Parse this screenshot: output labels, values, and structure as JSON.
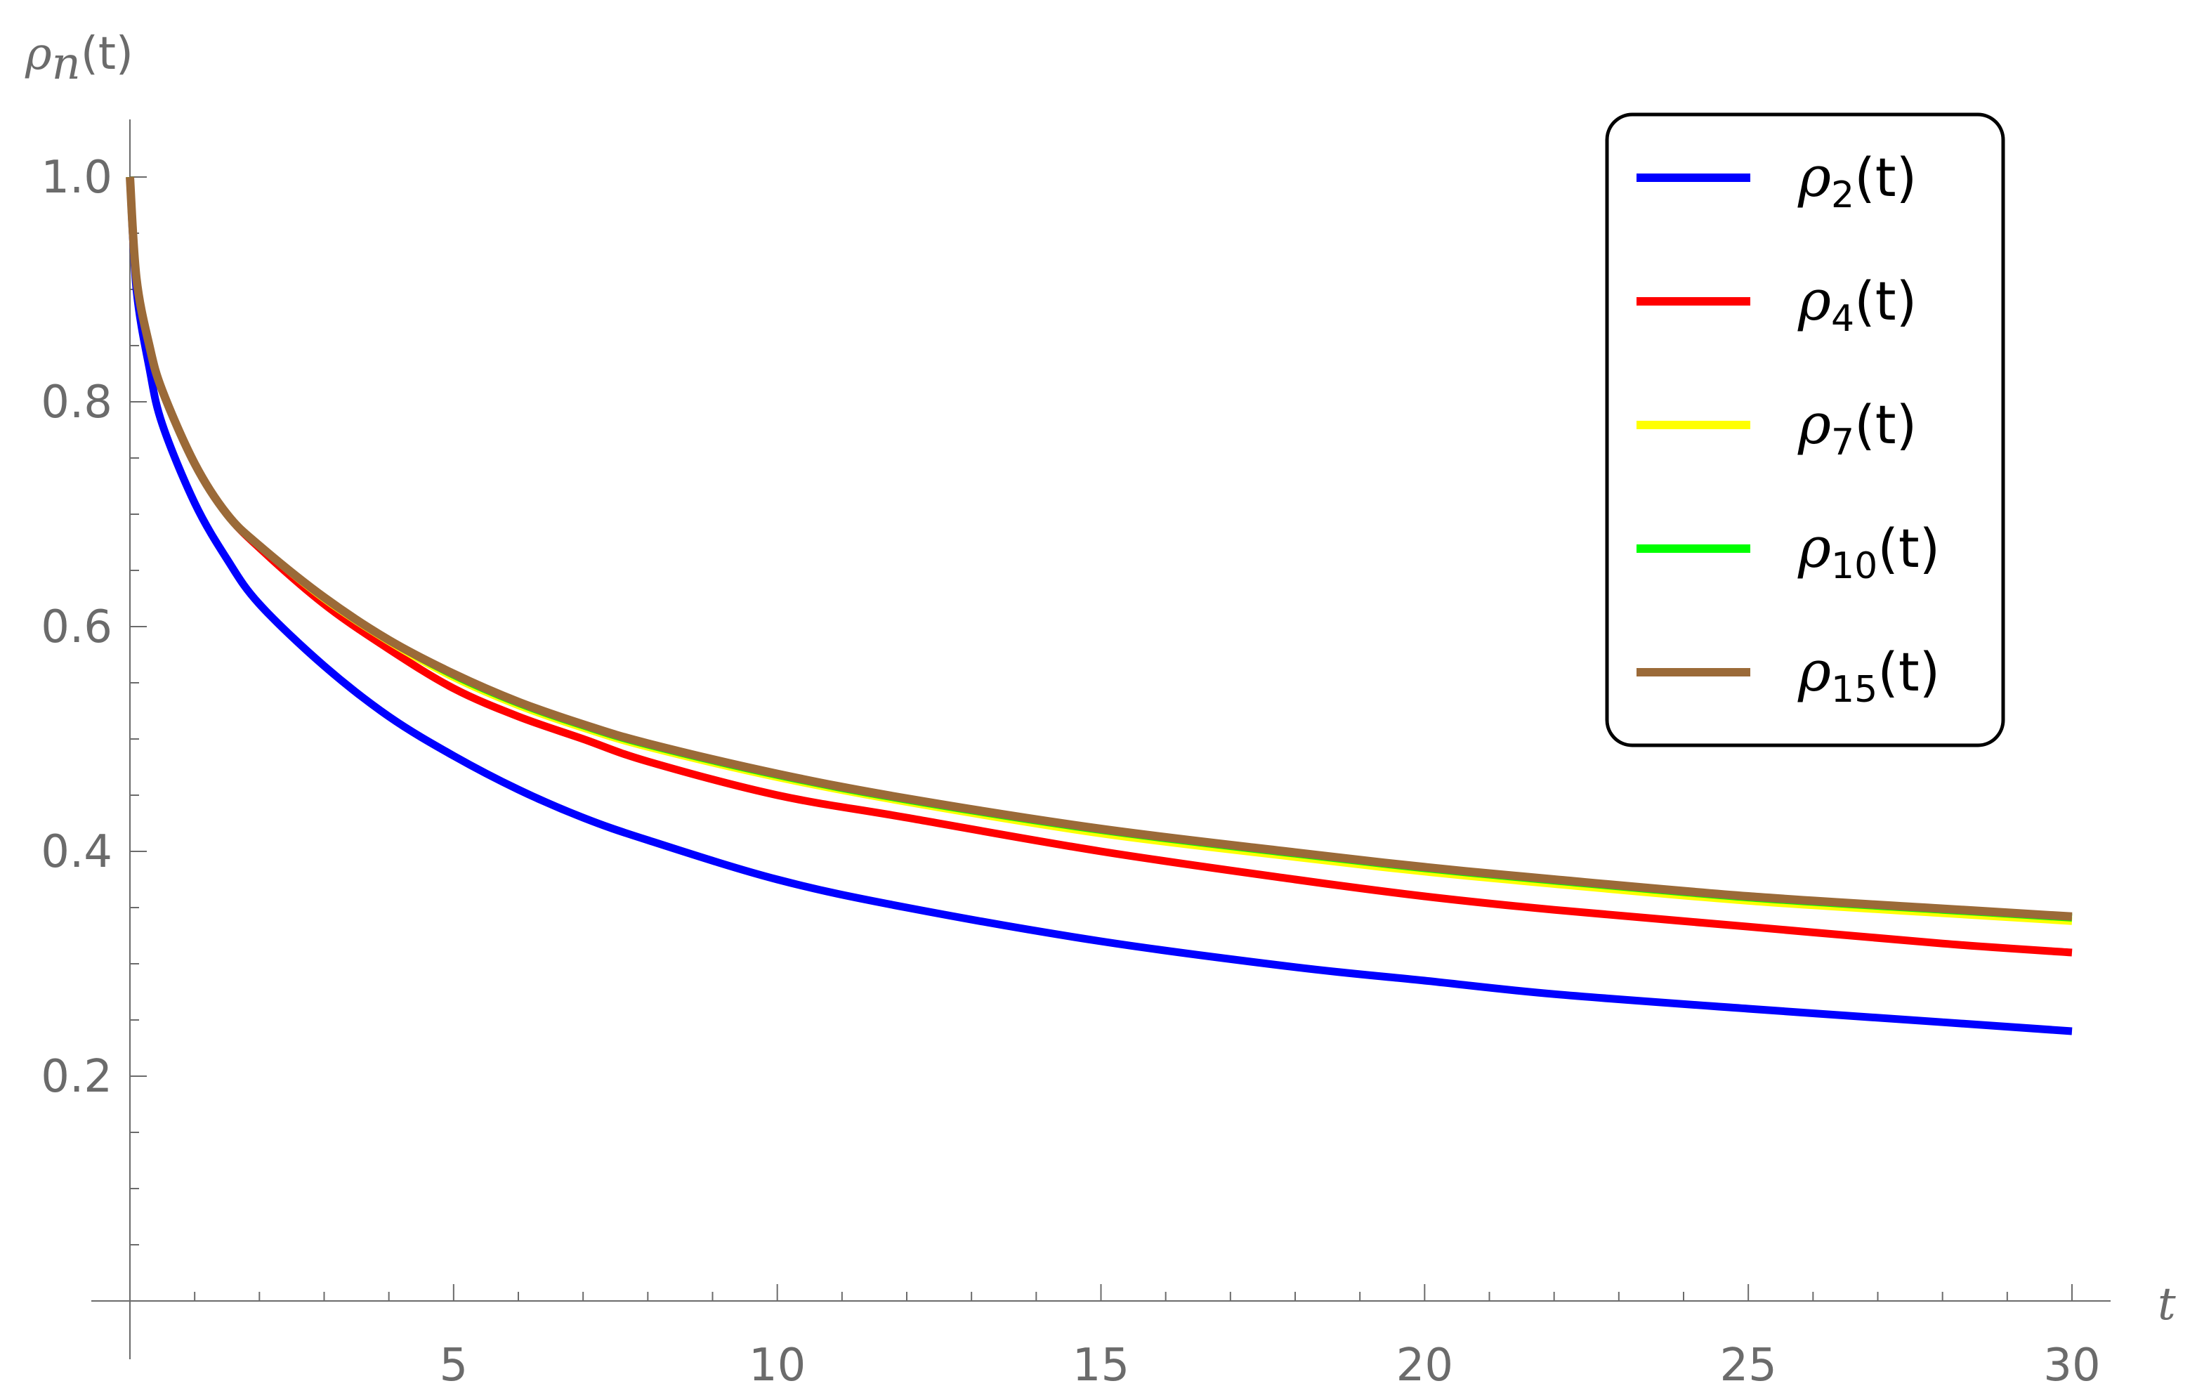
{
  "chart_data": {
    "type": "line",
    "title": "",
    "ylabel": {
      "main": "ρ",
      "sub": "n",
      "tail": "(t)"
    },
    "xlabel": "t",
    "xlim": [
      0,
      30
    ],
    "ylim": [
      0,
      1.05
    ],
    "xticks": [
      5,
      10,
      15,
      20,
      25,
      30
    ],
    "xtick_labels": [
      "5",
      "10",
      "15",
      "20",
      "25",
      "30"
    ],
    "yticks": [
      0.2,
      0.4,
      0.6,
      0.8,
      1.0
    ],
    "ytick_labels": [
      "0.2",
      "0.4",
      "0.6",
      "0.8",
      "1.0"
    ],
    "grid": false,
    "legend_position": "top-right",
    "x": [
      0,
      0.1,
      0.3,
      0.5,
      1,
      1.5,
      2,
      3,
      4,
      5,
      6,
      7,
      8,
      10,
      12,
      15,
      18,
      20,
      22,
      25,
      28,
      30
    ],
    "series": [
      {
        "name": "ρ2(t)",
        "label_main": "ρ",
        "label_sub": "2",
        "label_tail": "(t)",
        "color": "#0000ff",
        "values": [
          1.0,
          0.9,
          0.83,
          0.78,
          0.71,
          0.66,
          0.62,
          0.565,
          0.52,
          0.485,
          0.455,
          0.43,
          0.41,
          0.375,
          0.35,
          0.32,
          0.297,
          0.285,
          0.273,
          0.26,
          0.248,
          0.24
        ]
      },
      {
        "name": "ρ4(t)",
        "label_main": "ρ",
        "label_sub": "4",
        "label_tail": "(t)",
        "color": "#ff0000",
        "values": [
          1.0,
          0.91,
          0.85,
          0.81,
          0.745,
          0.7,
          0.67,
          0.62,
          0.58,
          0.545,
          0.52,
          0.5,
          0.48,
          0.45,
          0.43,
          0.4,
          0.375,
          0.36,
          0.348,
          0.333,
          0.318,
          0.31
        ]
      },
      {
        "name": "ρ7(t)",
        "label_main": "ρ",
        "label_sub": "7",
        "label_tail": "(t)",
        "color": "#ffff00",
        "values": [
          1.0,
          0.91,
          0.85,
          0.81,
          0.745,
          0.7,
          0.672,
          0.625,
          0.587,
          0.555,
          0.53,
          0.51,
          0.493,
          0.466,
          0.444,
          0.416,
          0.395,
          0.382,
          0.371,
          0.356,
          0.345,
          0.338
        ]
      },
      {
        "name": "ρ10(t)",
        "label_main": "ρ",
        "label_sub": "10",
        "label_tail": "(t)",
        "color": "#00ff00",
        "values": [
          1.0,
          0.91,
          0.85,
          0.81,
          0.745,
          0.7,
          0.672,
          0.626,
          0.588,
          0.557,
          0.532,
          0.512,
          0.495,
          0.468,
          0.446,
          0.419,
          0.398,
          0.385,
          0.374,
          0.359,
          0.348,
          0.341
        ]
      },
      {
        "name": "ρ15(t)",
        "label_main": "ρ",
        "label_sub": "15",
        "label_tail": "(t)",
        "color": "#9b6a38",
        "values": [
          1.0,
          0.91,
          0.85,
          0.81,
          0.745,
          0.7,
          0.672,
          0.626,
          0.588,
          0.558,
          0.533,
          0.513,
          0.496,
          0.469,
          0.447,
          0.42,
          0.399,
          0.386,
          0.375,
          0.36,
          0.349,
          0.342
        ]
      }
    ]
  }
}
